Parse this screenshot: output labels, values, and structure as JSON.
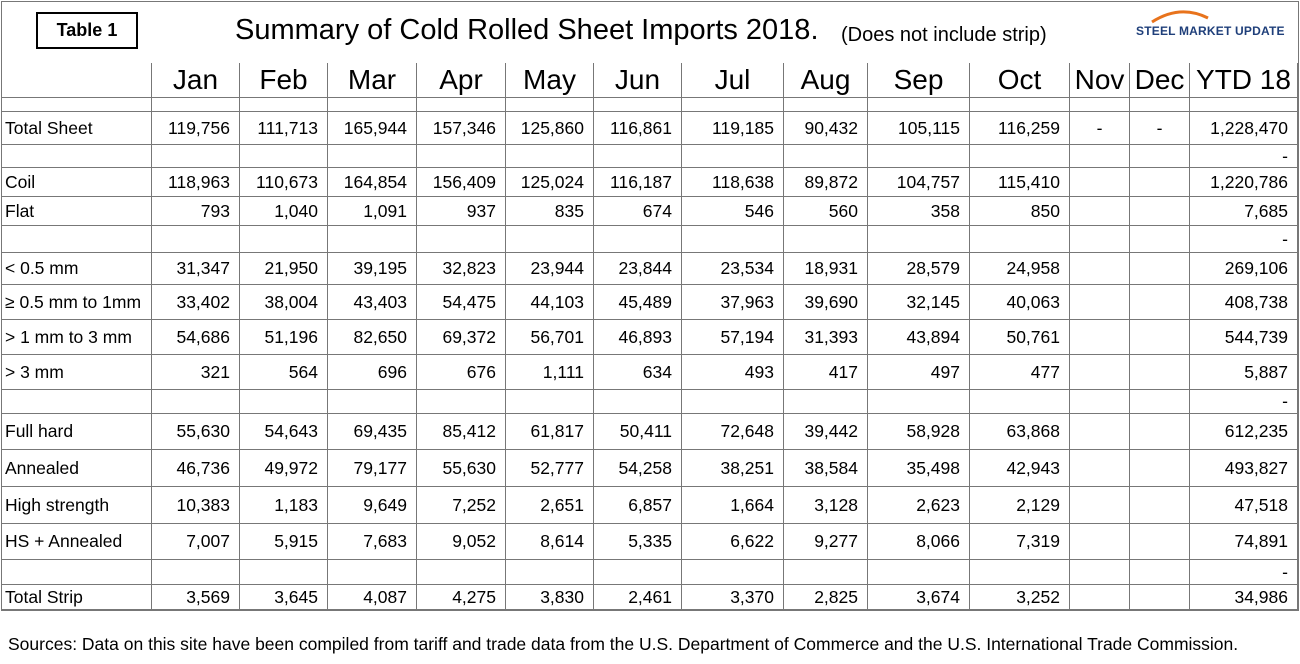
{
  "header": {
    "table_label": "Table 1",
    "title": "Summary of Cold Rolled Sheet Imports 2018.",
    "subtitle": "(Does not include strip)",
    "logo": "STEEL MARKET UPDATE"
  },
  "table": {
    "columns": [
      "Jan",
      "Feb",
      "Mar",
      "Apr",
      "May",
      "Jun",
      "Jul",
      "Aug",
      "Sep",
      "Oct",
      "Nov",
      "Dec",
      "YTD 18"
    ],
    "rows": [
      {
        "label": "Total Sheet",
        "cells": [
          "119,756",
          "111,713",
          "165,944",
          "157,346",
          "125,860",
          "116,861",
          "119,185",
          "90,432",
          "105,115",
          "116,259",
          "-",
          "-",
          "1,228,470"
        ]
      },
      {
        "label": null,
        "cells": [
          null,
          null,
          null,
          null,
          null,
          null,
          null,
          null,
          null,
          null,
          null,
          null,
          "-"
        ]
      },
      {
        "label": "Coil",
        "cells": [
          "118,963",
          "110,673",
          "164,854",
          "156,409",
          "125,024",
          "116,187",
          "118,638",
          "89,872",
          "104,757",
          "115,410",
          null,
          null,
          "1,220,786"
        ]
      },
      {
        "label": "Flat",
        "cells": [
          "793",
          "1,040",
          "1,091",
          "937",
          "835",
          "674",
          "546",
          "560",
          "358",
          "850",
          null,
          null,
          "7,685"
        ]
      },
      {
        "label": null,
        "cells": [
          null,
          null,
          null,
          null,
          null,
          null,
          null,
          null,
          null,
          null,
          null,
          null,
          "-"
        ]
      },
      {
        "label": "< 0.5 mm",
        "cells": [
          "31,347",
          "21,950",
          "39,195",
          "32,823",
          "23,944",
          "23,844",
          "23,534",
          "18,931",
          "28,579",
          "24,958",
          null,
          null,
          "269,106"
        ]
      },
      {
        "label": "≥ 0.5 mm to 1mm",
        "cells": [
          "33,402",
          "38,004",
          "43,403",
          "54,475",
          "44,103",
          "45,489",
          "37,963",
          "39,690",
          "32,145",
          "40,063",
          null,
          null,
          "408,738"
        ]
      },
      {
        "label": "> 1 mm to 3 mm",
        "cells": [
          "54,686",
          "51,196",
          "82,650",
          "69,372",
          "56,701",
          "46,893",
          "57,194",
          "31,393",
          "43,894",
          "50,761",
          null,
          null,
          "544,739"
        ]
      },
      {
        "label": "> 3 mm",
        "cells": [
          "321",
          "564",
          "696",
          "676",
          "1,111",
          "634",
          "493",
          "417",
          "497",
          "477",
          null,
          null,
          "5,887"
        ]
      },
      {
        "label": null,
        "cells": [
          null,
          null,
          null,
          null,
          null,
          null,
          null,
          null,
          null,
          null,
          null,
          null,
          "-"
        ]
      },
      {
        "label": "Full hard",
        "cells": [
          "55,630",
          "54,643",
          "69,435",
          "85,412",
          "61,817",
          "50,411",
          "72,648",
          "39,442",
          "58,928",
          "63,868",
          null,
          null,
          "612,235"
        ]
      },
      {
        "label": "Annealed",
        "cells": [
          "46,736",
          "49,972",
          "79,177",
          "55,630",
          "52,777",
          "54,258",
          "38,251",
          "38,584",
          "35,498",
          "42,943",
          null,
          null,
          "493,827"
        ]
      },
      {
        "label": "High strength",
        "cells": [
          "10,383",
          "1,183",
          "9,649",
          "7,252",
          "2,651",
          "6,857",
          "1,664",
          "3,128",
          "2,623",
          "2,129",
          null,
          null,
          "47,518"
        ]
      },
      {
        "label": "HS + Annealed",
        "cells": [
          "7,007",
          "5,915",
          "7,683",
          "9,052",
          "8,614",
          "5,335",
          "6,622",
          "9,277",
          "8,066",
          "7,319",
          null,
          null,
          "74,891"
        ]
      },
      {
        "label": null,
        "cells": [
          null,
          null,
          null,
          null,
          null,
          null,
          null,
          null,
          null,
          null,
          null,
          null,
          "-"
        ]
      },
      {
        "label": "Total Strip",
        "cells": [
          "3,569",
          "3,645",
          "4,087",
          "4,275",
          "3,830",
          "2,461",
          "3,370",
          "2,825",
          "3,674",
          "3,252",
          null,
          null,
          "34,986"
        ]
      }
    ]
  },
  "footer": {
    "sources": "Sources: Data on this site have been compiled from tariff and trade data from the U.S. Department of Commerce and the U.S. International Trade Commission."
  }
}
